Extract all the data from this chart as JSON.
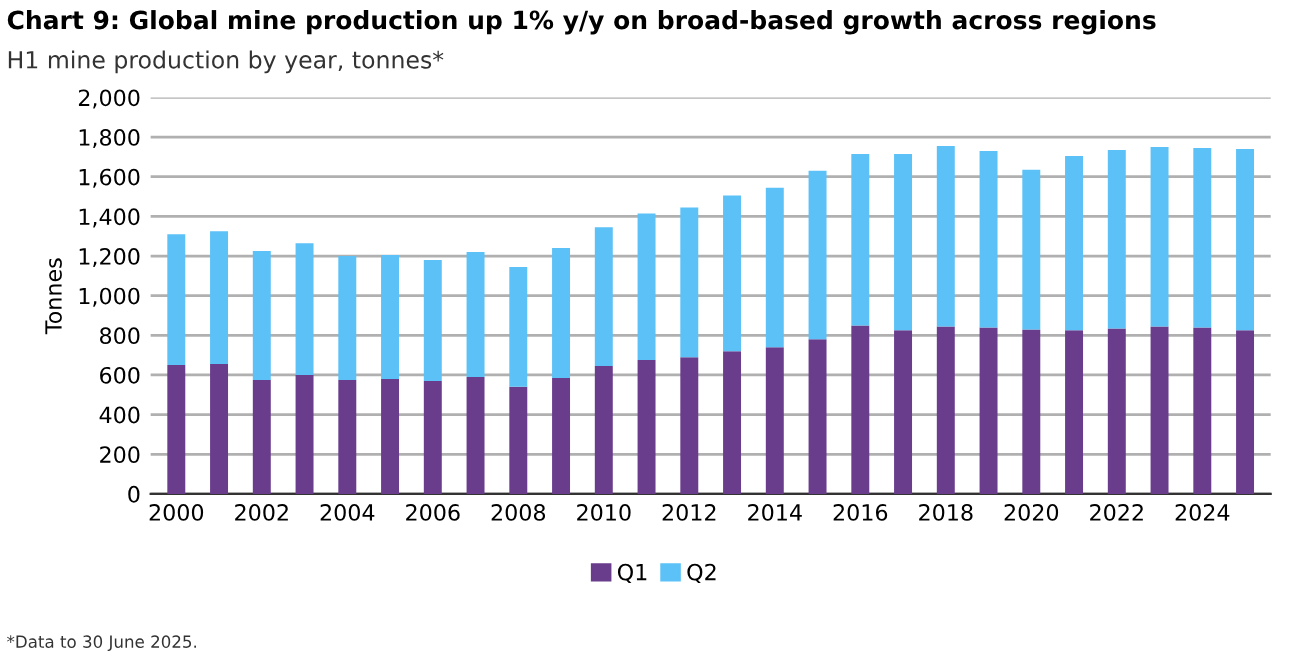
{
  "chart_data": {
    "type": "bar",
    "title": "Chart 9: Global mine production up 1% y/y on broad-based growth across regions",
    "subtitle": "H1 mine production by year, tonnes*",
    "ylabel": "Tonnes",
    "categories": [
      "2000",
      null,
      "2002",
      null,
      "2004",
      null,
      "2006",
      null,
      "2008",
      null,
      "2010",
      null,
      "2012",
      null,
      "2014",
      null,
      "2016",
      null,
      "2018",
      null,
      "2020",
      null,
      "2022",
      null,
      "2024",
      null
    ],
    "series": [
      {
        "name": "Q1",
        "color": "#6a3d8c",
        "values": [
          650,
          655,
          575,
          600,
          575,
          580,
          570,
          590,
          540,
          585,
          645,
          675,
          690,
          720,
          740,
          780,
          850,
          825,
          845,
          840,
          830,
          825,
          835,
          845,
          840,
          825
        ]
      },
      {
        "name": "Q2",
        "color": "#5bc1f7",
        "values": [
          660,
          670,
          650,
          665,
          625,
          625,
          610,
          630,
          605,
          655,
          700,
          740,
          755,
          785,
          805,
          850,
          865,
          890,
          910,
          890,
          805,
          880,
          900,
          905,
          905,
          915
        ]
      }
    ],
    "stacked": true,
    "ylim": [
      0,
      2000
    ],
    "yticks": [
      {
        "value": 0,
        "label": "0"
      },
      {
        "value": 200,
        "label": "200"
      },
      {
        "value": 400,
        "label": "400"
      },
      {
        "value": 600,
        "label": "600"
      },
      {
        "value": 800,
        "label": "800"
      },
      {
        "value": 1000,
        "label": "1,000"
      },
      {
        "value": 1200,
        "label": "1,200"
      },
      {
        "value": 1400,
        "label": "1,400"
      },
      {
        "value": 1600,
        "label": "1,600"
      },
      {
        "value": 1800,
        "label": "1,800"
      },
      {
        "value": 2000,
        "label": "2,000"
      }
    ],
    "grid": "y",
    "legend": "bottom",
    "annotations": [
      "*Data to 30 June 2025."
    ]
  }
}
